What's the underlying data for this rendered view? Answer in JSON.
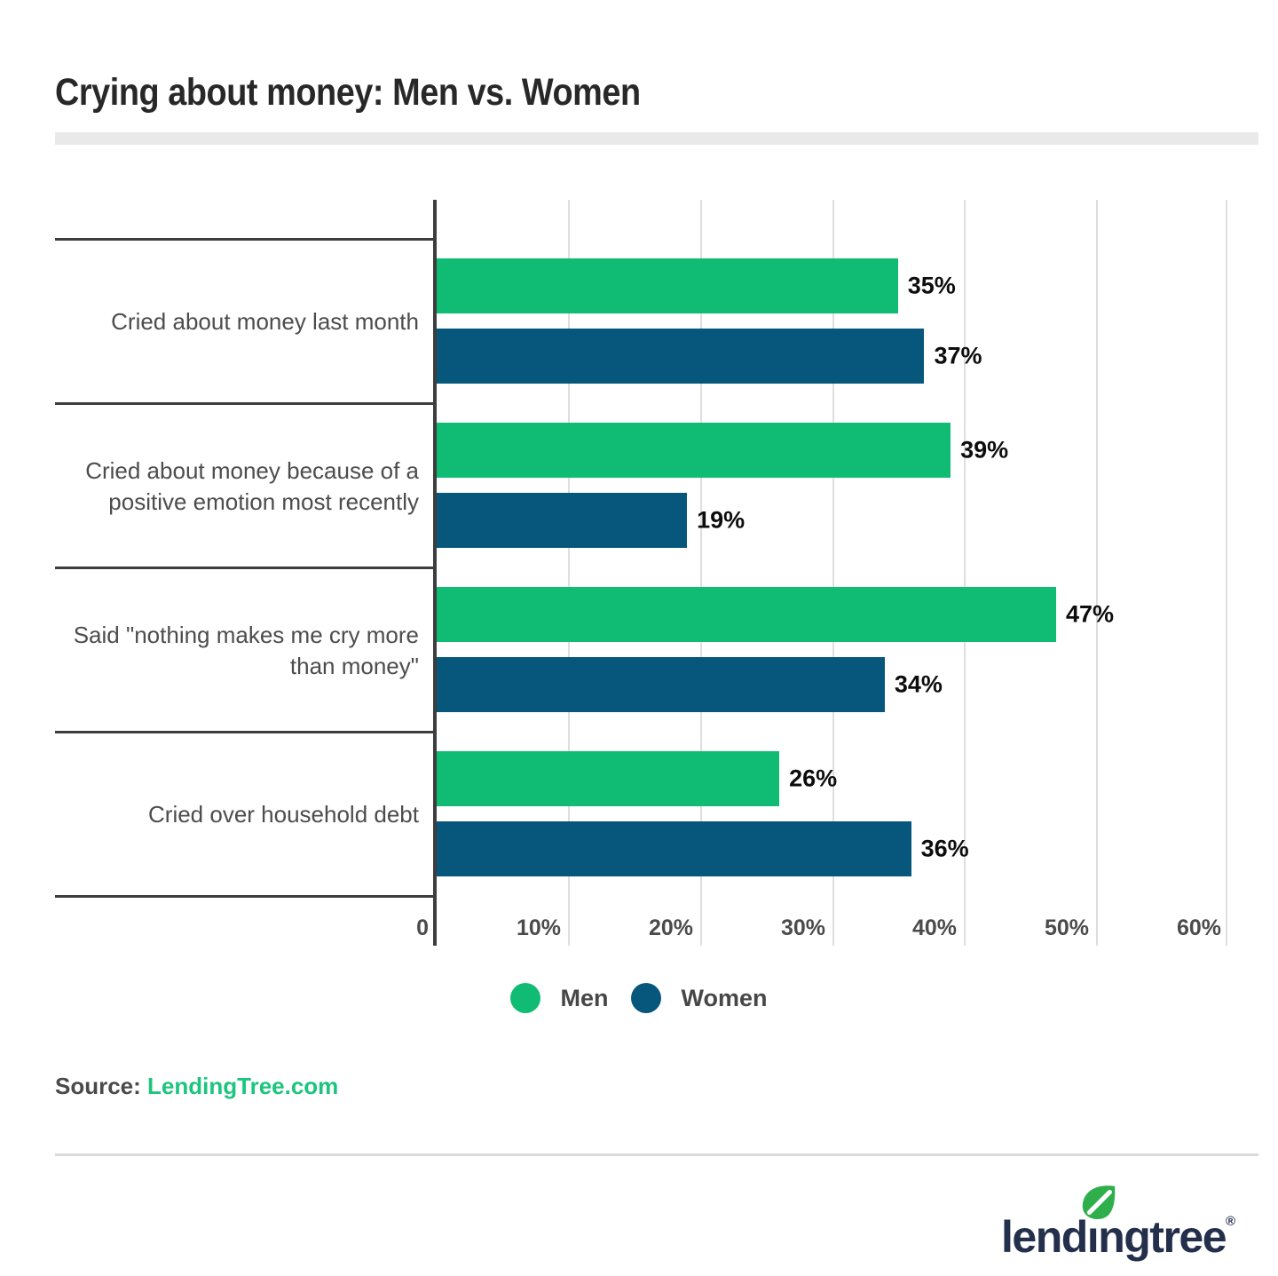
{
  "title": "Crying about money: Men vs. Women",
  "chart_data": {
    "type": "bar",
    "orientation": "horizontal",
    "title": "Crying about money: Men vs. Women",
    "categories": [
      "Cried about money last month",
      "Cried about money because of a positive emotion most recently",
      "Said \"nothing makes me cry more than money\"",
      "Cried over household debt"
    ],
    "series": [
      {
        "name": "Men",
        "color": "#10BC74",
        "values": [
          35,
          39,
          47,
          26
        ]
      },
      {
        "name": "Women",
        "color": "#07577D",
        "values": [
          37,
          19,
          34,
          36
        ]
      }
    ],
    "value_labels": [
      [
        "35%",
        "37%"
      ],
      [
        "39%",
        "19%"
      ],
      [
        "47%",
        "34%"
      ],
      [
        "26%",
        "36%"
      ]
    ],
    "xlim": [
      0,
      60
    ],
    "xticks": [
      "0",
      "10%",
      "20%",
      "30%",
      "40%",
      "50%",
      "60%"
    ],
    "grid": "vertical-light-gray",
    "legend_position": "bottom-center"
  },
  "legend": {
    "items": [
      {
        "label": "Men",
        "color": "#10BC74"
      },
      {
        "label": "Women",
        "color": "#07577D"
      }
    ]
  },
  "source": {
    "prefix": "Source: ",
    "link": "LendingTree.com"
  },
  "logo": {
    "part1": "lend",
    "dotless_i": "ı",
    "part2": "ngtree",
    "registered": "®",
    "leaf_color": "#2FAF4C",
    "wordmark_color": "#232F4B"
  }
}
